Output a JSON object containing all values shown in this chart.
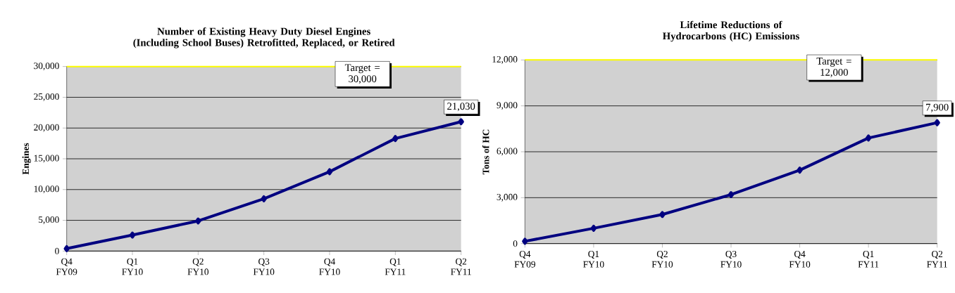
{
  "chart_data": [
    {
      "type": "line",
      "title": "Number of Existing Heavy Duty Diesel Engines (Including School Buses) Retrofitted, Replaced, or Retired",
      "ylabel": "Engines",
      "categories": [
        "Q4 FY09",
        "Q1 FY10",
        "Q2 FY10",
        "Q3 FY10",
        "Q4 FY10",
        "Q1 FY11",
        "Q2 FY11"
      ],
      "series": [
        {
          "color": "#000080",
          "values": [
            400,
            2600,
            4900,
            8500,
            12900,
            18300,
            21030
          ],
          "value_labels": [
            null,
            null,
            null,
            null,
            null,
            null,
            "21,030"
          ]
        }
      ],
      "ylim": [
        0,
        30000
      ],
      "yticks": [
        {
          "value": 0,
          "label": "0"
        },
        {
          "value": 5000,
          "label": "5,000"
        },
        {
          "value": 10000,
          "label": "10,000"
        },
        {
          "value": 15000,
          "label": "15,000"
        },
        {
          "value": 20000,
          "label": "20,000"
        },
        {
          "value": 25000,
          "label": "25,000"
        },
        {
          "value": 30000,
          "label": "30,000"
        }
      ],
      "ref_lines": [
        {
          "axis": "y",
          "value": 30000,
          "label": "Target = 30,000",
          "color": "#ffff00"
        }
      ],
      "grid": "y",
      "marker": "diamond"
    },
    {
      "type": "line",
      "title": "Lifetime Reductions of Hydrocarbons (HC) Emissions",
      "ylabel": "Tons of HC",
      "categories": [
        "Q4 FY09",
        "Q1 FY10",
        "Q2 FY10",
        "Q3 FY10",
        "Q4 FY10",
        "Q1 FY11",
        "Q2 FY11"
      ],
      "series": [
        {
          "color": "#000080",
          "values": [
            150,
            1000,
            1900,
            3200,
            4800,
            6900,
            7900
          ],
          "value_labels": [
            null,
            null,
            null,
            null,
            null,
            null,
            "7,900"
          ]
        }
      ],
      "ylim": [
        0,
        12000
      ],
      "yticks": [
        {
          "value": 0,
          "label": "0"
        },
        {
          "value": 3000,
          "label": "3,000"
        },
        {
          "value": 6000,
          "label": "6,000"
        },
        {
          "value": 9000,
          "label": "9,000"
        },
        {
          "value": 12000,
          "label": "12,000"
        }
      ],
      "ref_lines": [
        {
          "axis": "y",
          "value": 12000,
          "label": "Target = 12,000",
          "color": "#ffff00"
        }
      ],
      "grid": "y",
      "marker": "diamond"
    }
  ]
}
